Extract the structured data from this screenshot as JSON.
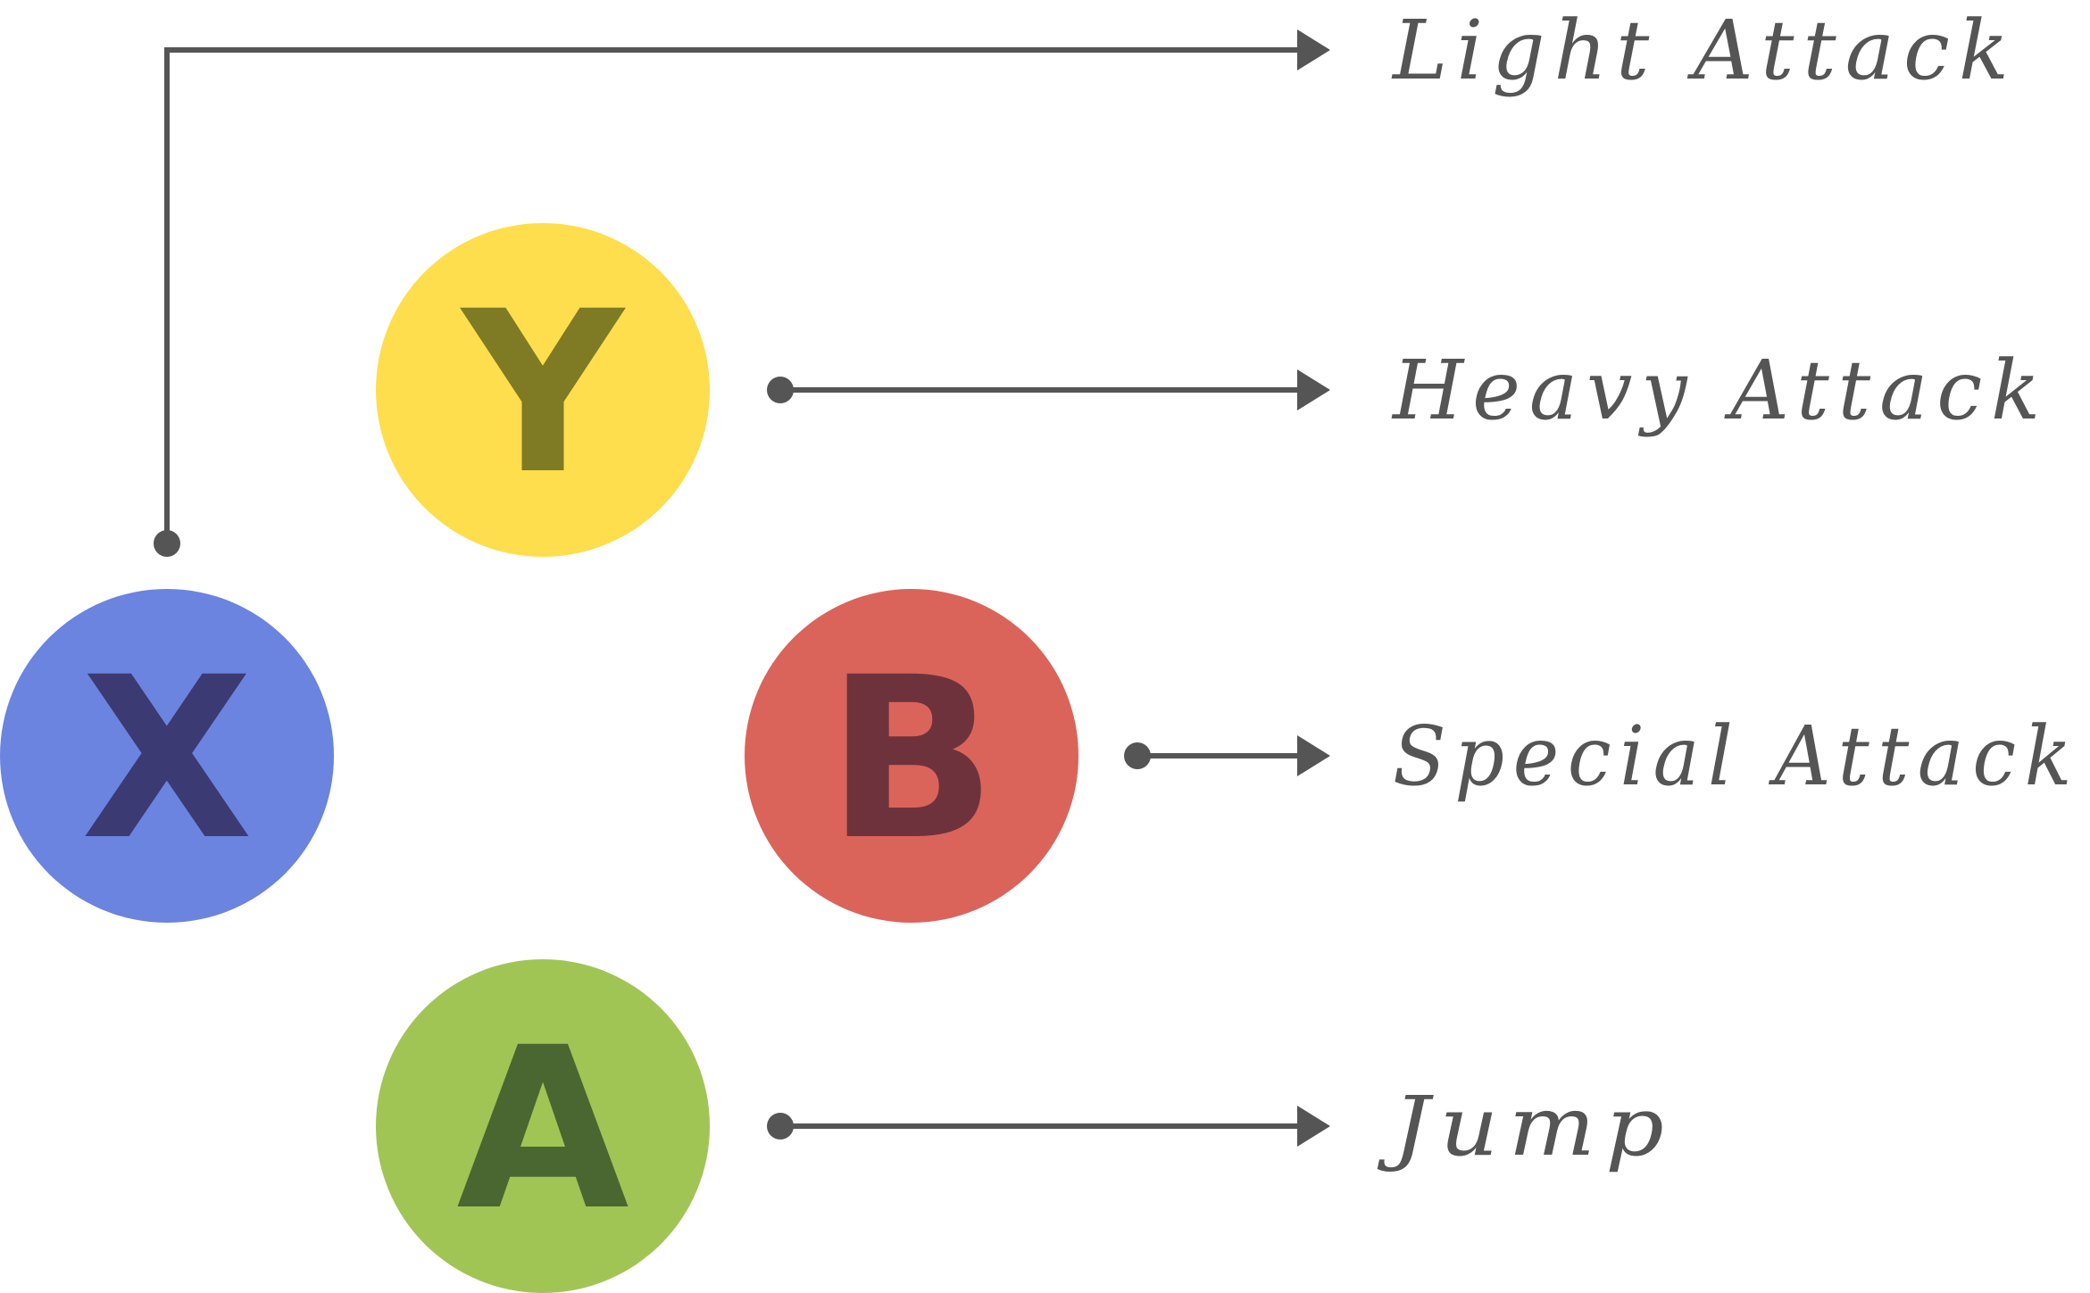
{
  "colors": {
    "line": "#555555",
    "label": "#555555"
  },
  "buttons": {
    "x": {
      "letter": "X",
      "fill": "#6b84e0",
      "text_color": "#3c3a72"
    },
    "y": {
      "letter": "Y",
      "fill": "#ffde4d",
      "text_color": "#7f7b24"
    },
    "b": {
      "letter": "B",
      "fill": "#da645a",
      "text_color": "#6e323c"
    },
    "a": {
      "letter": "A",
      "fill": "#a1c555",
      "text_color": "#4a6731"
    }
  },
  "actions": {
    "light": "Light Attack",
    "heavy": "Heavy Attack",
    "special": "Special Attack",
    "jump": "Jump"
  }
}
